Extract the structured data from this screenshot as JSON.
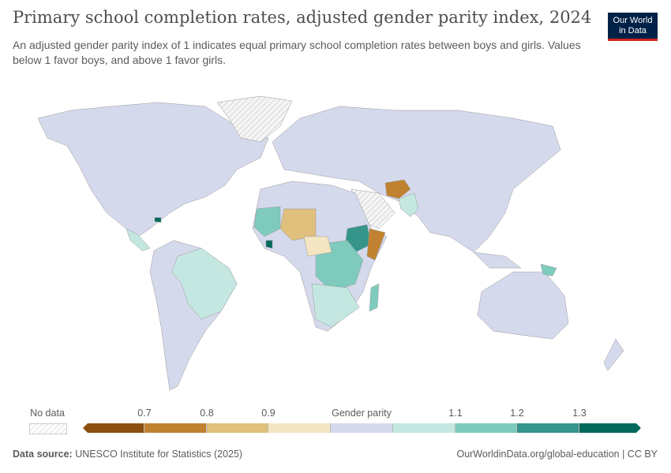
{
  "header": {
    "title": "Primary school completion rates, adjusted gender parity index, 2024",
    "subtitle": "An adjusted gender parity index of 1 indicates equal primary school completion rates between boys and girls. Values below 1 favor boys, and above 1 favor girls.",
    "logo_line1": "Our World",
    "logo_line2": "in Data"
  },
  "legend": {
    "no_data_label": "No data",
    "ticks": [
      "0.7",
      "0.8",
      "0.9",
      "Gender parity",
      "1.1",
      "1.2",
      "1.3"
    ],
    "colors": [
      "#8b500f",
      "#c08230",
      "#dfc07c",
      "#f4e6c2",
      "#d5d9ec",
      "#c4e8e1",
      "#7ecbbd",
      "#35958b",
      "#00695c"
    ],
    "no_data_color": "#eeeeee"
  },
  "footer": {
    "source_label": "Data source:",
    "source": "UNESCO Institute for Statistics (2025)",
    "url": "OurWorldinData.org/global-education | CC BY"
  }
}
